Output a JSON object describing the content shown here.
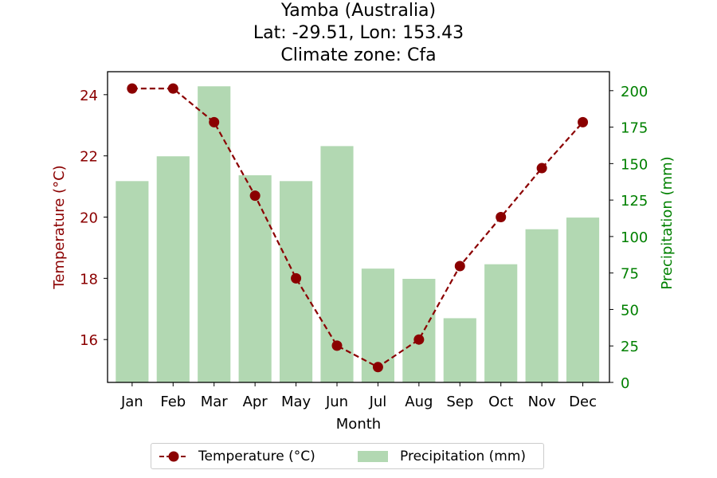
{
  "chart_data": {
    "type": "bar+line",
    "title_lines": [
      "Yamba (Australia)",
      "Lat: -29.51, Lon: 153.43",
      "Climate zone: Cfa"
    ],
    "xlabel": "Month",
    "categories": [
      "Jan",
      "Feb",
      "Mar",
      "Apr",
      "May",
      "Jun",
      "Jul",
      "Aug",
      "Sep",
      "Oct",
      "Nov",
      "Dec"
    ],
    "temperature": {
      "name": "Temperature (°C)",
      "axis_label": "Temperature (°C)",
      "values": [
        24.2,
        24.2,
        23.1,
        20.7,
        18.0,
        15.8,
        15.1,
        16.0,
        18.4,
        20.0,
        21.6,
        23.1
      ],
      "ylim": [
        14.6,
        24.75
      ],
      "ticks": [
        16,
        18,
        20,
        22,
        24
      ],
      "color": "#8b0000"
    },
    "precipitation": {
      "name": "Precipitation (mm)",
      "axis_label": "Precipitation (mm)",
      "values": [
        138,
        155,
        203,
        142,
        138,
        162,
        78,
        71,
        44,
        81,
        105,
        113
      ],
      "ylim": [
        0,
        213
      ],
      "ticks": [
        0,
        25,
        50,
        75,
        100,
        125,
        150,
        175,
        200
      ],
      "color": "#008000",
      "bar_color": "#b2d8b2"
    },
    "grid": false,
    "legend_position": "bottom-center"
  }
}
